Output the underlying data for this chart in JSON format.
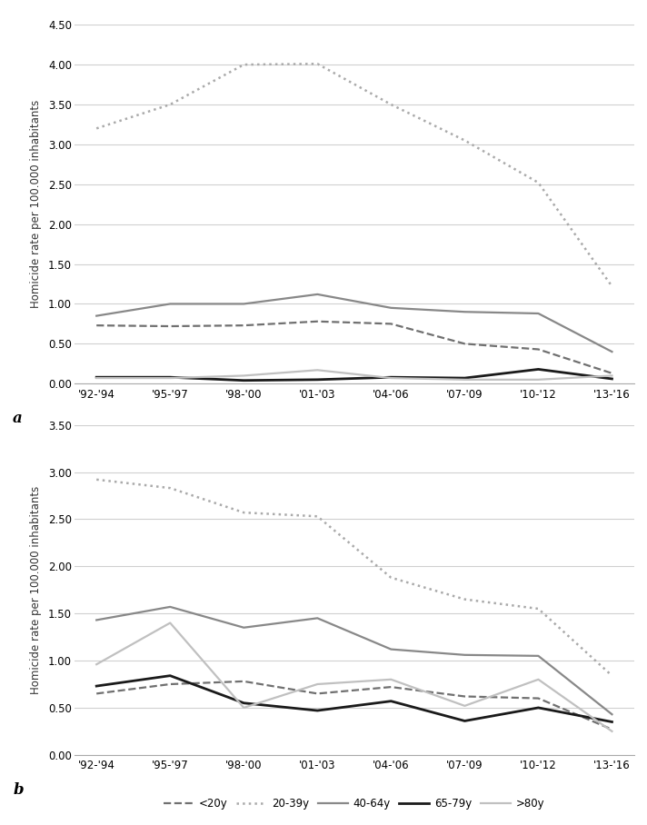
{
  "x_labels": [
    "'92-'94",
    "'95-'97",
    "'98-'00",
    "'01-'03",
    "'04-'06",
    "'07-'09",
    "'10-'12",
    "'13-'16"
  ],
  "chart_a": {
    "ylim": [
      0.0,
      4.5
    ],
    "yticks": [
      0.0,
      0.5,
      1.0,
      1.5,
      2.0,
      2.5,
      3.0,
      3.5,
      4.0,
      4.5
    ],
    "series": {
      "<20y": [
        0.73,
        0.72,
        0.73,
        0.78,
        0.75,
        0.5,
        0.43,
        0.13
      ],
      "20-39y": [
        3.2,
        3.5,
        4.0,
        4.01,
        3.5,
        3.05,
        2.52,
        1.22
      ],
      "40-64y": [
        0.85,
        1.0,
        1.0,
        1.12,
        0.95,
        0.9,
        0.88,
        0.4
      ],
      "65-79y": [
        0.08,
        0.08,
        0.04,
        0.05,
        0.08,
        0.07,
        0.18,
        0.06
      ],
      ">80y": [
        0.07,
        0.07,
        0.1,
        0.17,
        0.07,
        0.05,
        0.05,
        0.1
      ]
    }
  },
  "chart_b": {
    "ylim": [
      0.0,
      3.5
    ],
    "yticks": [
      0.0,
      0.5,
      1.0,
      1.5,
      2.0,
      2.5,
      3.0,
      3.5
    ],
    "series": {
      "<20y": [
        0.65,
        0.75,
        0.78,
        0.65,
        0.72,
        0.62,
        0.6,
        0.27
      ],
      "20-39y": [
        2.92,
        2.83,
        2.57,
        2.53,
        1.88,
        1.65,
        1.55,
        0.84
      ],
      "40-64y": [
        1.43,
        1.57,
        1.35,
        1.45,
        1.12,
        1.06,
        1.05,
        0.43
      ],
      "65-79y": [
        0.73,
        0.84,
        0.55,
        0.47,
        0.57,
        0.36,
        0.5,
        0.35
      ],
      ">80y": [
        0.96,
        1.4,
        0.5,
        0.75,
        0.8,
        0.52,
        0.8,
        0.25
      ]
    }
  },
  "series_styles": {
    "<20y": {
      "color": "#707070",
      "linestyle": "--",
      "linewidth": 1.6
    },
    "20-39y": {
      "color": "#aaaaaa",
      "linestyle": ":",
      "linewidth": 1.8
    },
    "40-64y": {
      "color": "#888888",
      "linestyle": "-",
      "linewidth": 1.6
    },
    "65-79y": {
      "color": "#1a1a1a",
      "linestyle": "-",
      "linewidth": 2.0
    },
    ">80y": {
      "color": "#c0c0c0",
      "linestyle": "-",
      "linewidth": 1.6
    }
  },
  "series_order": [
    "<20y",
    "20-39y",
    "40-64y",
    "65-79y",
    ">80y"
  ],
  "ylabel": "Homicide rate per 100.000 inhabitants",
  "fig_bg": "#ffffff",
  "plot_bg": "#ffffff",
  "grid_color": "#d0d0d0",
  "spine_color": "#aaaaaa",
  "tick_color": "#333333",
  "label_a": "a",
  "label_b": "b"
}
